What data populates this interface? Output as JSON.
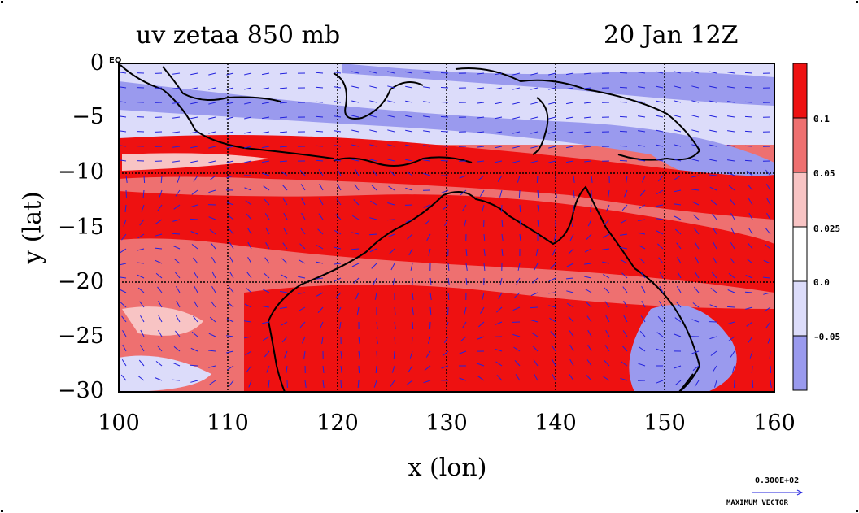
{
  "title_left": "uv zetaa 850 mb",
  "title_right": "20 Jan 12Z",
  "xlabel": "x (lon)",
  "ylabel": "y (lat)",
  "eq_label": "EQ",
  "x_ticks": [
    "100",
    "110",
    "120",
    "130",
    "140",
    "150",
    "160"
  ],
  "y_ticks": [
    "0",
    "−5",
    "−10",
    "−15",
    "−20",
    "−25",
    "−30"
  ],
  "colorbar": {
    "labels": [
      "0.1",
      "0.05",
      "0.025",
      "0.0",
      "-0.05"
    ],
    "colors": [
      "#ee1111",
      "#ee7070",
      "#f8c4c4",
      "#ffffff",
      "#dcdcfa",
      "#9a9aee"
    ]
  },
  "max_vector": {
    "value": "0.300E+02",
    "label": "MAXIMUM VECTOR"
  },
  "colors": {
    "strong_positive": "#ee1111",
    "medium_positive": "#ee7070",
    "weak_positive": "#f8c4c4",
    "weak_negative": "#dcdcfa",
    "strong_negative": "#9a9aee",
    "vectors": "#2222dd",
    "coast": "#000000"
  },
  "chart_data": {
    "type": "map",
    "variable": "uv zetaa 850 mb",
    "time": "20 Jan 12Z",
    "xlim": [
      100,
      160
    ],
    "ylim": [
      -30,
      0
    ],
    "grid": true,
    "contour_levels": [
      -0.05,
      0.0,
      0.025,
      0.05,
      0.1
    ]
  }
}
